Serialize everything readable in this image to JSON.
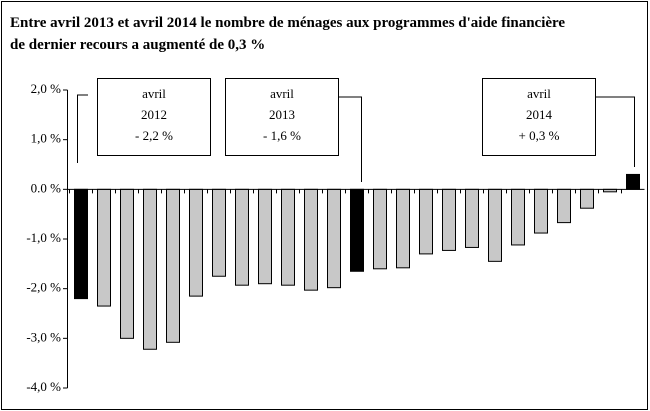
{
  "chart_data": {
    "type": "bar",
    "title": "Entre avril 2013 et avril 2014 le nombre de ménages aux programmes d'aide financière de dernier recours a augmenté de 0,3 %",
    "categories": [
      null,
      null,
      null,
      null,
      null,
      null,
      null,
      null,
      null,
      null,
      null,
      null,
      null,
      null,
      null,
      null,
      null,
      null,
      null,
      null,
      null,
      null,
      null,
      null,
      null
    ],
    "values": [
      -2.2,
      -2.35,
      -3.0,
      -3.22,
      -3.08,
      -2.15,
      -1.75,
      -1.93,
      -1.9,
      -1.93,
      -2.03,
      -1.98,
      -1.65,
      -1.6,
      -1.58,
      -1.3,
      -1.23,
      -1.17,
      -1.45,
      -1.12,
      -0.88,
      -0.67,
      -0.38,
      -0.05,
      0.3
    ],
    "colors": [
      "#000000",
      "#c8c8c8",
      "#c8c8c8",
      "#c8c8c8",
      "#c8c8c8",
      "#c8c8c8",
      "#c8c8c8",
      "#c8c8c8",
      "#c8c8c8",
      "#c8c8c8",
      "#c8c8c8",
      "#c8c8c8",
      "#000000",
      "#c8c8c8",
      "#c8c8c8",
      "#c8c8c8",
      "#c8c8c8",
      "#c8c8c8",
      "#c8c8c8",
      "#c8c8c8",
      "#c8c8c8",
      "#c8c8c8",
      "#c8c8c8",
      "#c8c8c8",
      "#000000"
    ],
    "ylim": [
      -4,
      2
    ],
    "yticks": [
      {
        "value": 2,
        "label": "2,0 %"
      },
      {
        "value": 1,
        "label": "1,0 %"
      },
      {
        "value": 0,
        "label": "0.0 %"
      },
      {
        "value": -1,
        "label": "-1,0 %"
      },
      {
        "value": -2,
        "label": "-2,0 %"
      },
      {
        "value": -3,
        "label": "-3,0 %"
      },
      {
        "value": -4,
        "label": "-4,0 %"
      }
    ],
    "annotations": [
      [
        "avril",
        "2012",
        "- 2,2 %"
      ],
      [
        "avril",
        "2013",
        "- 1,6 %"
      ],
      [
        "avril",
        "2014",
        "+ 0,3 %"
      ]
    ]
  }
}
